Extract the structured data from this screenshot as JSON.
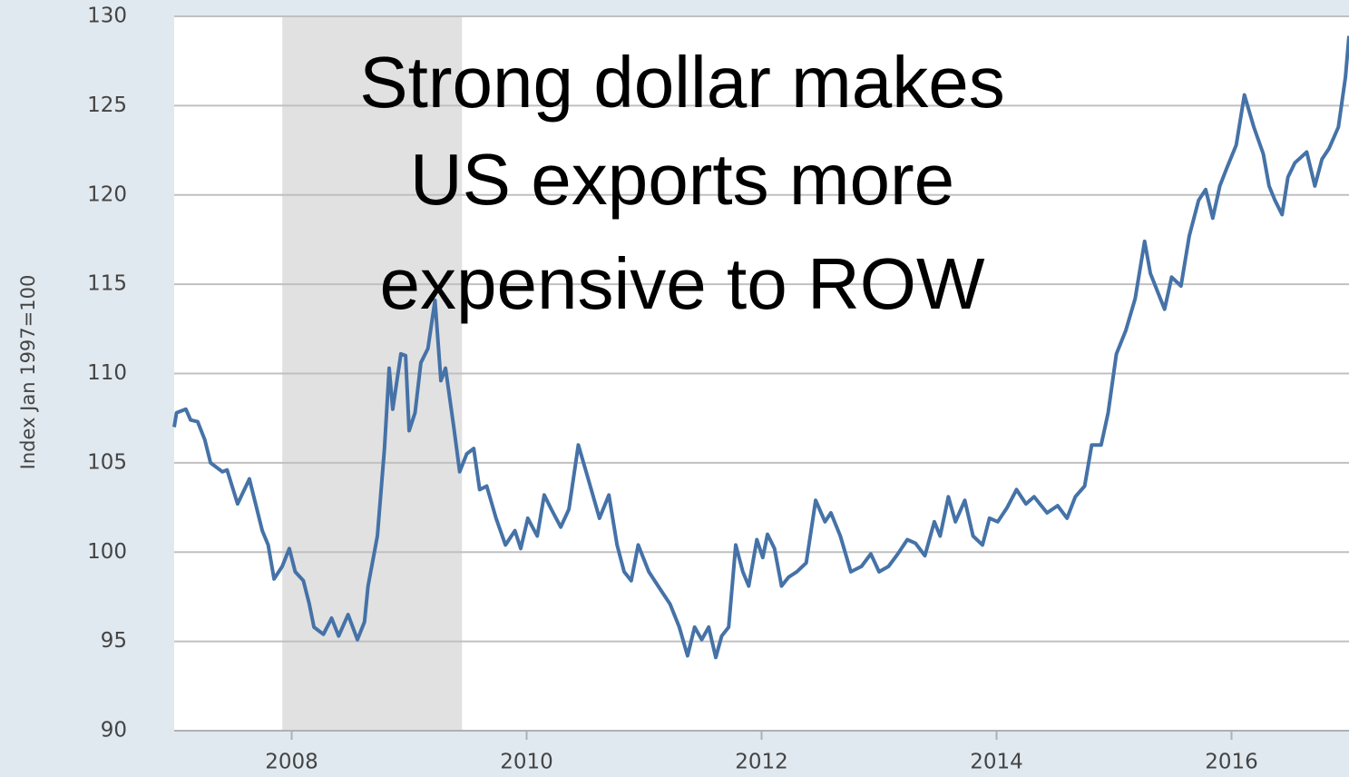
{
  "chart_data": {
    "type": "line",
    "y_label": "Index Jan 1997=100",
    "annotation": [
      "Strong dollar makes",
      "US exports more",
      "expensive to ROW"
    ],
    "color": "#4572a7",
    "recession": [
      2007.92,
      2009.45
    ],
    "xlim": [
      2007,
      2017
    ],
    "xticks": [
      2008,
      2010,
      2012,
      2014,
      2016
    ],
    "ylim": [
      90,
      130
    ],
    "yticks": [
      90,
      95,
      100,
      105,
      110,
      115,
      120,
      125,
      130
    ],
    "grid": true,
    "x": [
      2007.0,
      2007.02,
      2007.1,
      2007.14,
      2007.2,
      2007.26,
      2007.31,
      2007.41,
      2007.45,
      2007.54,
      2007.64,
      2007.75,
      2007.8,
      2007.85,
      2007.92,
      2007.98,
      2008.03,
      2008.1,
      2008.15,
      2008.19,
      2008.27,
      2008.34,
      2008.4,
      2008.48,
      2008.56,
      2008.62,
      2008.65,
      2008.73,
      2008.79,
      2008.83,
      2008.86,
      2008.93,
      2008.97,
      2009.0,
      2009.05,
      2009.1,
      2009.16,
      2009.22,
      2009.27,
      2009.31,
      2009.38,
      2009.43,
      2009.49,
      2009.55,
      2009.6,
      2009.66,
      2009.74,
      2009.82,
      2009.9,
      2009.95,
      2010.01,
      2010.09,
      2010.15,
      2010.21,
      2010.29,
      2010.36,
      2010.44,
      2010.52,
      2010.62,
      2010.7,
      2010.77,
      2010.83,
      2010.89,
      2010.95,
      2010.98,
      2011.04,
      2011.14,
      2011.22,
      2011.3,
      2011.37,
      2011.43,
      2011.49,
      2011.55,
      2011.61,
      2011.66,
      2011.72,
      2011.78,
      2011.84,
      2011.89,
      2011.96,
      2012.01,
      2012.05,
      2012.11,
      2012.17,
      2012.23,
      2012.3,
      2012.38,
      2012.46,
      2012.54,
      2012.59,
      2012.67,
      2012.76,
      2012.85,
      2012.93,
      2013.0,
      2013.08,
      2013.16,
      2013.24,
      2013.31,
      2013.39,
      2013.47,
      2013.52,
      2013.59,
      2013.65,
      2013.73,
      2013.8,
      2013.88,
      2013.94,
      2014.01,
      2014.09,
      2014.17,
      2014.25,
      2014.32,
      2014.43,
      2014.52,
      2014.6,
      2014.67,
      2014.75,
      2014.81,
      2014.89,
      2014.95,
      2015.02,
      2015.1,
      2015.18,
      2015.26,
      2015.31,
      2015.37,
      2015.43,
      2015.49,
      2015.57,
      2015.64,
      2015.72,
      2015.78,
      2015.84,
      2015.9,
      2015.96,
      2016.04,
      2016.11,
      2016.19,
      2016.27,
      2016.32,
      2016.37,
      2016.43,
      2016.48,
      2016.54,
      2016.64,
      2016.71,
      2016.77,
      2016.83,
      2016.91,
      2016.97,
      2017.0
    ],
    "values": [
      107.0,
      107.8,
      108.0,
      107.4,
      107.3,
      106.3,
      105.0,
      104.5,
      104.6,
      102.7,
      104.1,
      101.2,
      100.4,
      98.5,
      99.2,
      100.2,
      98.9,
      98.4,
      97.1,
      95.8,
      95.4,
      96.3,
      95.3,
      96.5,
      95.1,
      96.1,
      98.1,
      100.9,
      105.8,
      110.3,
      108.0,
      111.1,
      111.0,
      106.8,
      107.8,
      110.6,
      111.4,
      114.1,
      109.6,
      110.3,
      107.0,
      104.5,
      105.5,
      105.8,
      103.5,
      103.7,
      101.9,
      100.4,
      101.2,
      100.2,
      101.9,
      100.9,
      103.2,
      102.4,
      101.4,
      102.4,
      106.0,
      104.2,
      101.9,
      103.2,
      100.4,
      98.9,
      98.4,
      100.4,
      99.9,
      98.9,
      97.9,
      97.1,
      95.8,
      94.2,
      95.8,
      95.1,
      95.8,
      94.1,
      95.3,
      95.8,
      100.4,
      98.9,
      98.1,
      100.7,
      99.7,
      101.0,
      100.2,
      98.1,
      98.6,
      98.9,
      99.4,
      102.9,
      101.7,
      102.2,
      100.9,
      98.9,
      99.2,
      99.9,
      98.9,
      99.2,
      99.9,
      100.7,
      100.5,
      99.8,
      101.7,
      100.9,
      103.1,
      101.7,
      102.9,
      100.9,
      100.4,
      101.9,
      101.7,
      102.5,
      103.5,
      102.7,
      103.1,
      102.2,
      102.6,
      101.9,
      103.1,
      103.7,
      106.0,
      106.0,
      107.8,
      111.1,
      112.4,
      114.2,
      117.4,
      115.6,
      114.6,
      113.6,
      115.4,
      114.9,
      117.7,
      119.7,
      120.3,
      118.7,
      120.5,
      121.5,
      122.8,
      125.6,
      123.8,
      122.3,
      120.5,
      119.7,
      118.9,
      121.0,
      121.8,
      122.4,
      120.5,
      122.0,
      122.6,
      123.8,
      126.6,
      128.9
    ]
  }
}
